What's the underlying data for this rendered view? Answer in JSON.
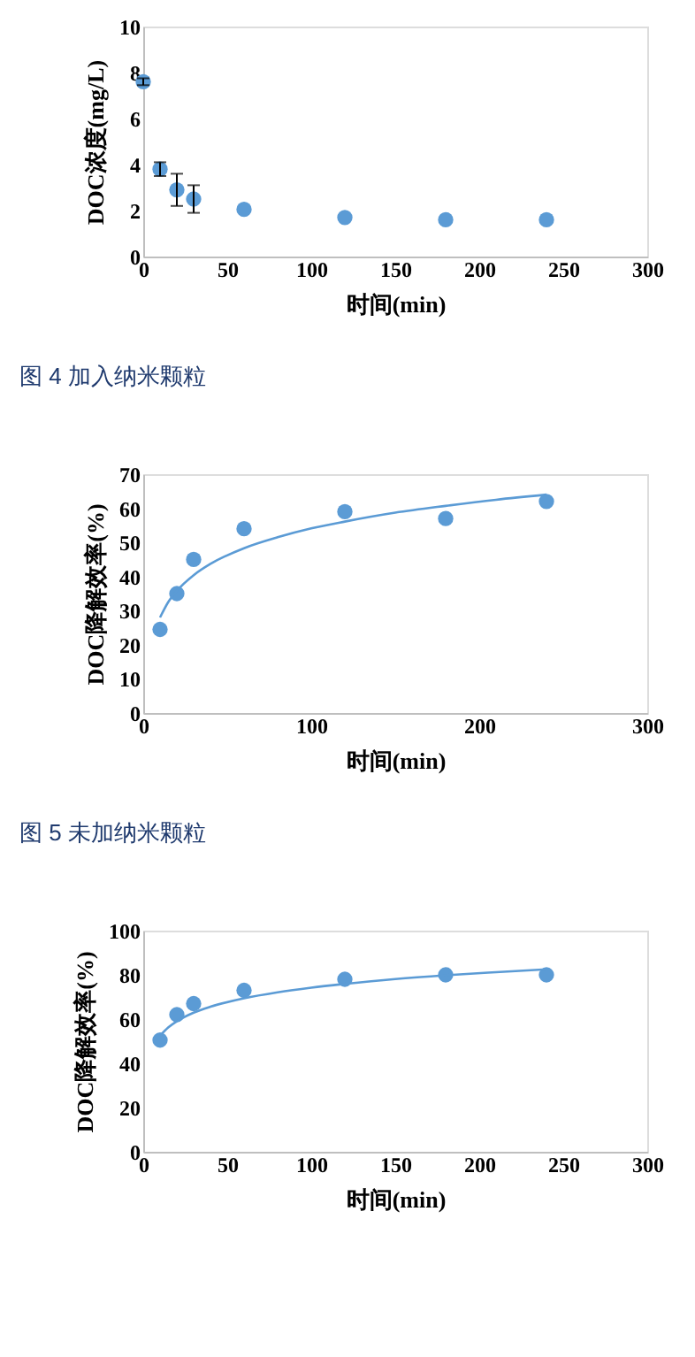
{
  "chart_data": [
    {
      "type": "scatter",
      "xlabel": "时间(min)",
      "ylabel": "DOC浓度(mg/L)",
      "xlim": [
        0,
        300
      ],
      "xticks": [
        0,
        50,
        100,
        150,
        200,
        250,
        300
      ],
      "ylim": [
        0,
        10
      ],
      "yticks": [
        0,
        2,
        4,
        6,
        8,
        10
      ],
      "grid": false,
      "marker": "circle",
      "annotations": [
        "图 4 加入纳米颗粒"
      ],
      "series": [
        {
          "color": "#5b9bd5",
          "x": [
            0,
            10,
            20,
            30,
            60,
            120,
            180,
            240
          ],
          "values": [
            7.6,
            3.8,
            2.9,
            2.5,
            2.05,
            1.7,
            1.6,
            1.6
          ],
          "errors": [
            0.15,
            0.3,
            0.7,
            0.6,
            null,
            null,
            null,
            null
          ]
        }
      ]
    },
    {
      "type": "scatter",
      "xlabel": "时间(min)",
      "ylabel": "DOC降解效率(%)",
      "xlim": [
        0,
        300
      ],
      "xticks": [
        0,
        100,
        200,
        300
      ],
      "ylim": [
        0,
        70
      ],
      "yticks": [
        0,
        10,
        20,
        30,
        40,
        50,
        60,
        70
      ],
      "grid": false,
      "marker": "circle",
      "annotations": [
        "图 5 未加纳米颗粒"
      ],
      "series": [
        {
          "color": "#5b9bd5",
          "x": [
            10,
            20,
            30,
            60,
            120,
            180,
            240
          ],
          "values": [
            24.5,
            35,
            45,
            54,
            59,
            57,
            62
          ]
        },
        {
          "type": "line",
          "marker": "none",
          "line_style": "solid",
          "color": "#5b9bd5",
          "x": [
            10,
            15,
            20,
            30,
            40,
            60,
            80,
            100,
            120,
            150,
            180,
            210,
            240
          ],
          "values": [
            28.0,
            32.6,
            35.8,
            40.4,
            43.7,
            48.3,
            51.5,
            54.1,
            56.1,
            58.7,
            60.7,
            62.5,
            64.0
          ]
        }
      ]
    },
    {
      "type": "scatter",
      "xlabel": "时间(min)",
      "ylabel": "DOC降解效率(%)",
      "xlim": [
        0,
        300
      ],
      "xticks": [
        0,
        50,
        100,
        150,
        200,
        250,
        300
      ],
      "ylim": [
        0,
        100
      ],
      "yticks": [
        0,
        20,
        40,
        60,
        80,
        100
      ],
      "grid": false,
      "marker": "circle",
      "series": [
        {
          "color": "#5b9bd5",
          "x": [
            10,
            20,
            30,
            60,
            120,
            180,
            240
          ],
          "values": [
            50.5,
            62,
            67,
            73,
            78,
            80,
            80
          ]
        },
        {
          "type": "line",
          "marker": "none",
          "line_style": "solid",
          "color": "#5b9bd5",
          "x": [
            10,
            15,
            20,
            30,
            40,
            60,
            80,
            100,
            120,
            150,
            180,
            210,
            240
          ],
          "values": [
            52.5,
            56.3,
            59.0,
            62.9,
            65.6,
            69.4,
            72.1,
            74.2,
            75.9,
            78.1,
            79.8,
            81.2,
            82.5
          ]
        }
      ]
    }
  ]
}
